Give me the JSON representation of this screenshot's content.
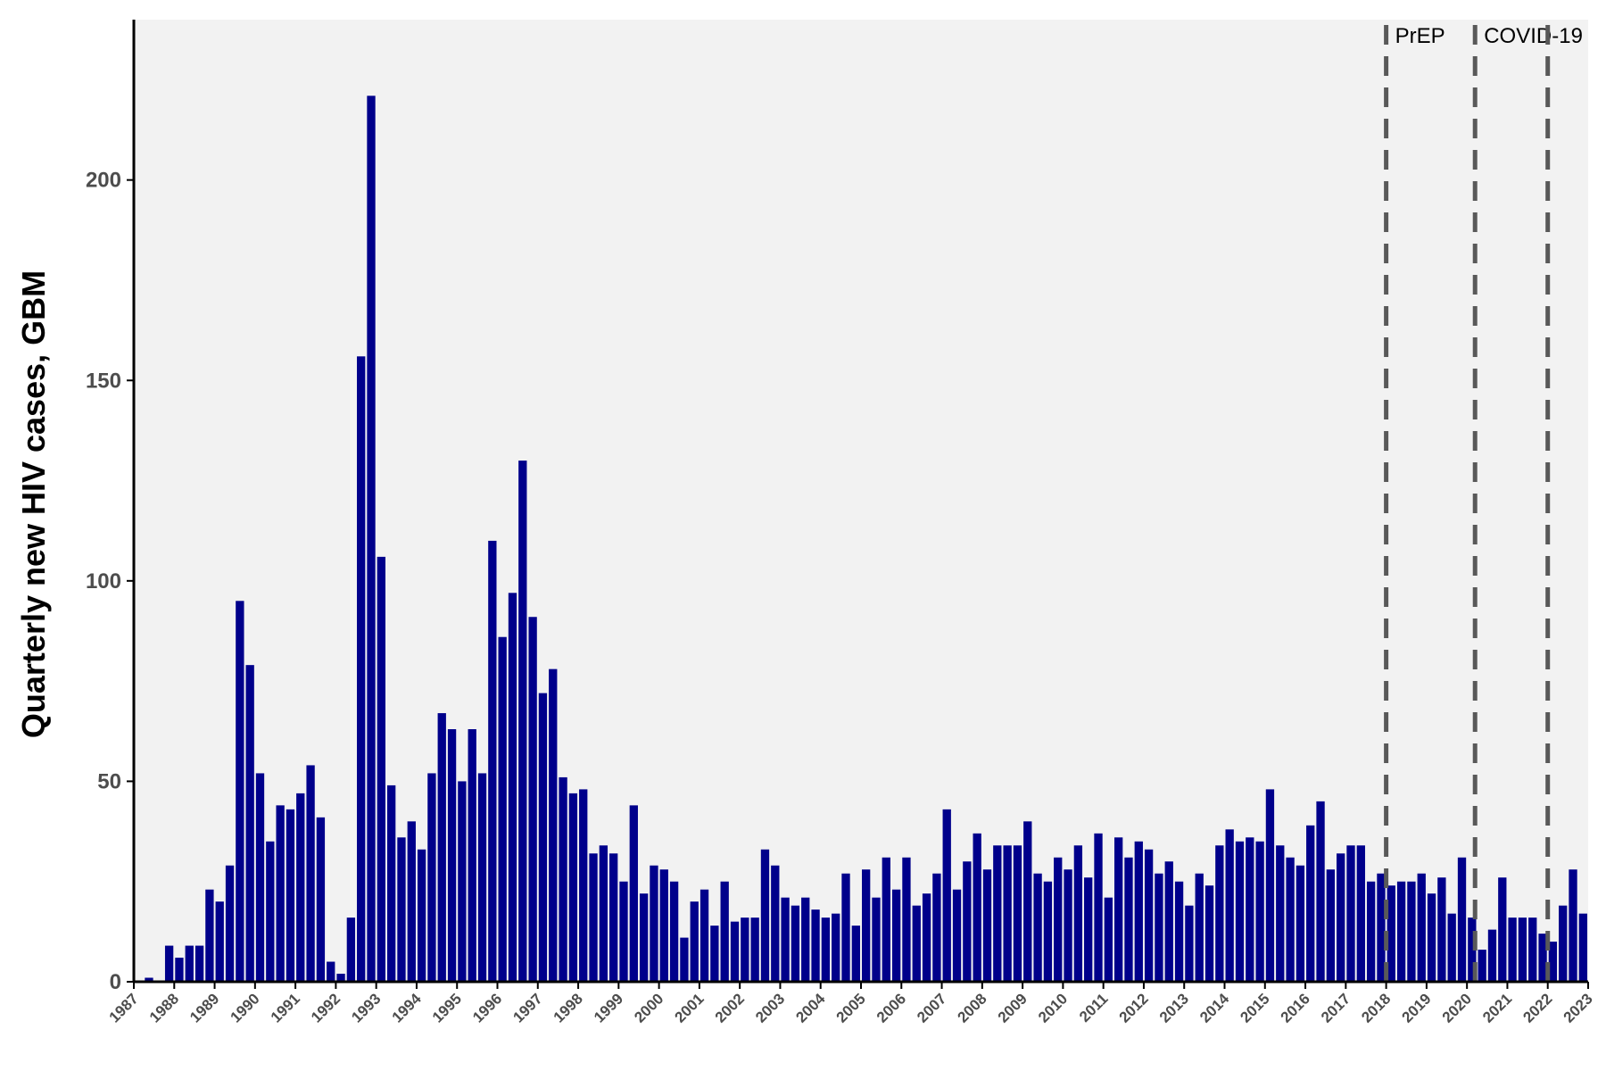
{
  "chart_data": {
    "type": "bar",
    "title": "",
    "xlabel": "",
    "ylabel": "Quarterly new HIV cases, GBM",
    "xlim": [
      1987,
      2023
    ],
    "ylim": [
      0,
      240
    ],
    "yticks": [
      0,
      50,
      100,
      150,
      200
    ],
    "xticks": [
      1987,
      1988,
      1989,
      1990,
      1991,
      1992,
      1993,
      1994,
      1995,
      1996,
      1997,
      1998,
      1999,
      2000,
      2001,
      2002,
      2003,
      2004,
      2005,
      2006,
      2007,
      2008,
      2009,
      2010,
      2011,
      2012,
      2013,
      2014,
      2015,
      2016,
      2017,
      2018,
      2019,
      2020,
      2021,
      2022,
      2023
    ],
    "grid": false,
    "background": "#f2f2f2",
    "bar_color": "#00008b",
    "first_quarter_start": 1987.0,
    "quarter_width": 0.25,
    "values": [
      0,
      1,
      0,
      9,
      6,
      9,
      9,
      23,
      20,
      29,
      95,
      79,
      52,
      35,
      44,
      43,
      47,
      54,
      41,
      5,
      2,
      16,
      156,
      221,
      106,
      49,
      36,
      40,
      33,
      52,
      67,
      63,
      50,
      63,
      52,
      110,
      86,
      97,
      130,
      91,
      72,
      78,
      51,
      47,
      48,
      32,
      34,
      32,
      25,
      44,
      22,
      29,
      28,
      25,
      11,
      20,
      23,
      14,
      25,
      15,
      16,
      16,
      33,
      29,
      21,
      19,
      21,
      18,
      16,
      17,
      27,
      14,
      28,
      21,
      31,
      23,
      31,
      19,
      22,
      27,
      43,
      23,
      30,
      37,
      28,
      34,
      34,
      34,
      40,
      27,
      25,
      31,
      28,
      34,
      26,
      37,
      21,
      36,
      31,
      35,
      33,
      27,
      30,
      25,
      19,
      27,
      24,
      34,
      38,
      35,
      36,
      35,
      48,
      34,
      31,
      29,
      39,
      45,
      28,
      32,
      34,
      34,
      25,
      27,
      24,
      25,
      25,
      27,
      22,
      26,
      17,
      31,
      16,
      8,
      13,
      26,
      16,
      16,
      16,
      12,
      10,
      19,
      28,
      17
    ],
    "annotations": [
      {
        "label": "PrEP",
        "x": 2018.0,
        "style": "dashed",
        "color": "#595959"
      },
      {
        "label": "COVID-19",
        "x": 2020.2,
        "style": "dashed",
        "color": "#595959"
      },
      {
        "label": "",
        "x": 2022.0,
        "style": "dashed",
        "color": "#595959"
      }
    ]
  }
}
